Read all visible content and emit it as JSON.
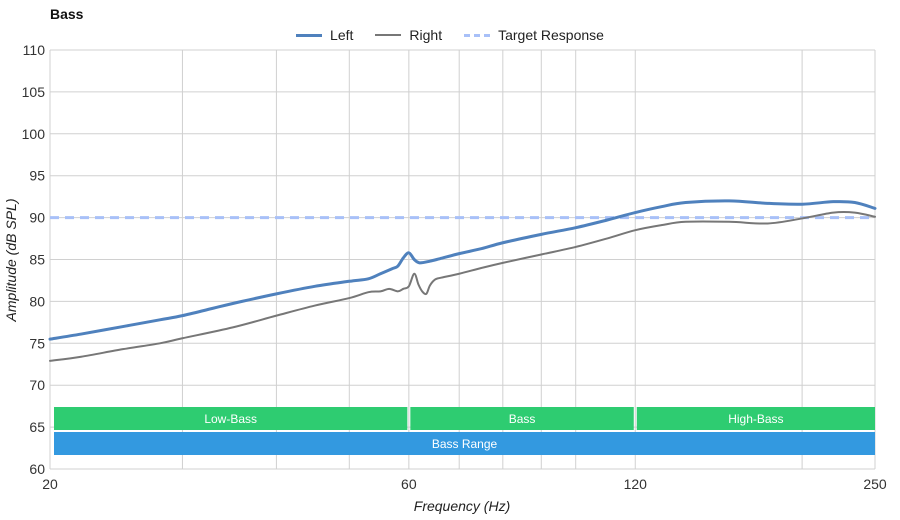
{
  "chart_data": {
    "type": "line",
    "title": "Bass",
    "xlabel": "Frequency (Hz)",
    "ylabel": "Amplitude (dB SPL)",
    "ylim": [
      60,
      110
    ],
    "xlim": [
      20,
      250
    ],
    "x_scale": "log",
    "y_ticks": [
      60,
      65,
      70,
      75,
      80,
      85,
      90,
      95,
      100,
      105,
      110
    ],
    "x_tick_labels": [
      20,
      60,
      120,
      250
    ],
    "x_gridlines": [
      20,
      30,
      40,
      50,
      60,
      70,
      80,
      90,
      100,
      120,
      200,
      250
    ],
    "grid": true,
    "legend_position": "top-center",
    "series": [
      {
        "name": "Left",
        "color": "#4f81bd",
        "style": "solid",
        "points": [
          [
            20,
            75.5
          ],
          [
            22,
            76.1
          ],
          [
            25,
            77
          ],
          [
            28,
            77.8
          ],
          [
            30,
            78.3
          ],
          [
            33,
            79.2
          ],
          [
            36,
            80
          ],
          [
            40,
            80.9
          ],
          [
            45,
            81.8
          ],
          [
            50,
            82.4
          ],
          [
            53,
            82.7
          ],
          [
            55,
            83.3
          ],
          [
            57,
            83.9
          ],
          [
            58,
            84.2
          ],
          [
            59,
            85.2
          ],
          [
            60,
            85.8
          ],
          [
            61,
            85
          ],
          [
            62,
            84.6
          ],
          [
            64,
            84.8
          ],
          [
            66,
            85.1
          ],
          [
            70,
            85.7
          ],
          [
            75,
            86.3
          ],
          [
            80,
            87
          ],
          [
            90,
            88
          ],
          [
            100,
            88.8
          ],
          [
            110,
            89.7
          ],
          [
            120,
            90.6
          ],
          [
            130,
            91.3
          ],
          [
            140,
            91.8
          ],
          [
            160,
            92
          ],
          [
            180,
            91.7
          ],
          [
            200,
            91.6
          ],
          [
            220,
            91.9
          ],
          [
            235,
            91.8
          ],
          [
            250,
            91.1
          ]
        ]
      },
      {
        "name": "Right",
        "color": "#777777",
        "style": "solid",
        "points": [
          [
            20,
            72.9
          ],
          [
            22,
            73.4
          ],
          [
            25,
            74.3
          ],
          [
            28,
            75
          ],
          [
            30,
            75.6
          ],
          [
            35,
            76.9
          ],
          [
            40,
            78.3
          ],
          [
            45,
            79.5
          ],
          [
            50,
            80.4
          ],
          [
            53,
            81.1
          ],
          [
            55,
            81.2
          ],
          [
            56.5,
            81.5
          ],
          [
            58,
            81.2
          ],
          [
            59,
            81.5
          ],
          [
            60,
            81.8
          ],
          [
            61,
            83.3
          ],
          [
            61.8,
            82
          ],
          [
            62.5,
            81.2
          ],
          [
            63.3,
            80.9
          ],
          [
            64,
            81.9
          ],
          [
            65,
            82.6
          ],
          [
            66,
            82.8
          ],
          [
            70,
            83.3
          ],
          [
            75,
            84
          ],
          [
            80,
            84.6
          ],
          [
            90,
            85.6
          ],
          [
            100,
            86.5
          ],
          [
            110,
            87.5
          ],
          [
            120,
            88.5
          ],
          [
            130,
            89.1
          ],
          [
            140,
            89.5
          ],
          [
            160,
            89.5
          ],
          [
            180,
            89.3
          ],
          [
            200,
            89.9
          ],
          [
            220,
            90.6
          ],
          [
            235,
            90.6
          ],
          [
            250,
            90.1
          ]
        ]
      },
      {
        "name": "Target Response",
        "color": "#a8c0f8",
        "style": "dashed",
        "points": [
          [
            20,
            90
          ],
          [
            250,
            90
          ]
        ]
      }
    ],
    "bands": [
      {
        "label": "Low-Bass",
        "from": 20,
        "to": 60,
        "color": "#2ecc71",
        "row": 1
      },
      {
        "label": "Bass",
        "from": 60,
        "to": 120,
        "color": "#2ecc71",
        "row": 1
      },
      {
        "label": "High-Bass",
        "from": 120,
        "to": 250,
        "color": "#2ecc71",
        "row": 1
      },
      {
        "label": "Bass Range",
        "from": 20,
        "to": 250,
        "color": "#3399e0",
        "row": 2
      }
    ]
  }
}
